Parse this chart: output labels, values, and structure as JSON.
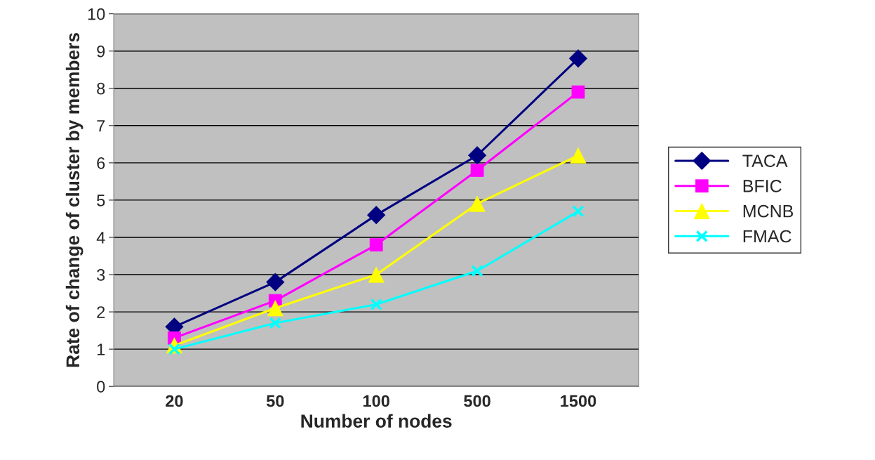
{
  "chart_data": {
    "type": "line",
    "xlabel": "Number of nodes",
    "ylabel": "Rate of change of cluster by members",
    "categories": [
      "20",
      "50",
      "100",
      "500",
      "1500"
    ],
    "series": [
      {
        "name": "TACA",
        "color": "#000080",
        "marker": "diamond",
        "values": [
          1.6,
          2.8,
          4.6,
          6.2,
          8.8
        ]
      },
      {
        "name": "BFIC",
        "color": "#ff00ff",
        "marker": "square",
        "values": [
          1.3,
          2.3,
          3.8,
          5.8,
          7.9
        ]
      },
      {
        "name": "MCNB",
        "color": "#ffff00",
        "marker": "triangle",
        "values": [
          1.1,
          2.1,
          3.0,
          4.9,
          6.2
        ]
      },
      {
        "name": "FMAC",
        "color": "#00ffff",
        "marker": "cross",
        "values": [
          1.0,
          1.7,
          2.2,
          3.1,
          4.7
        ]
      }
    ],
    "ylim": [
      0,
      10
    ],
    "yticks": [
      0,
      1,
      2,
      3,
      4,
      5,
      6,
      7,
      8,
      9,
      10
    ],
    "grid": "y",
    "legend": "right"
  }
}
